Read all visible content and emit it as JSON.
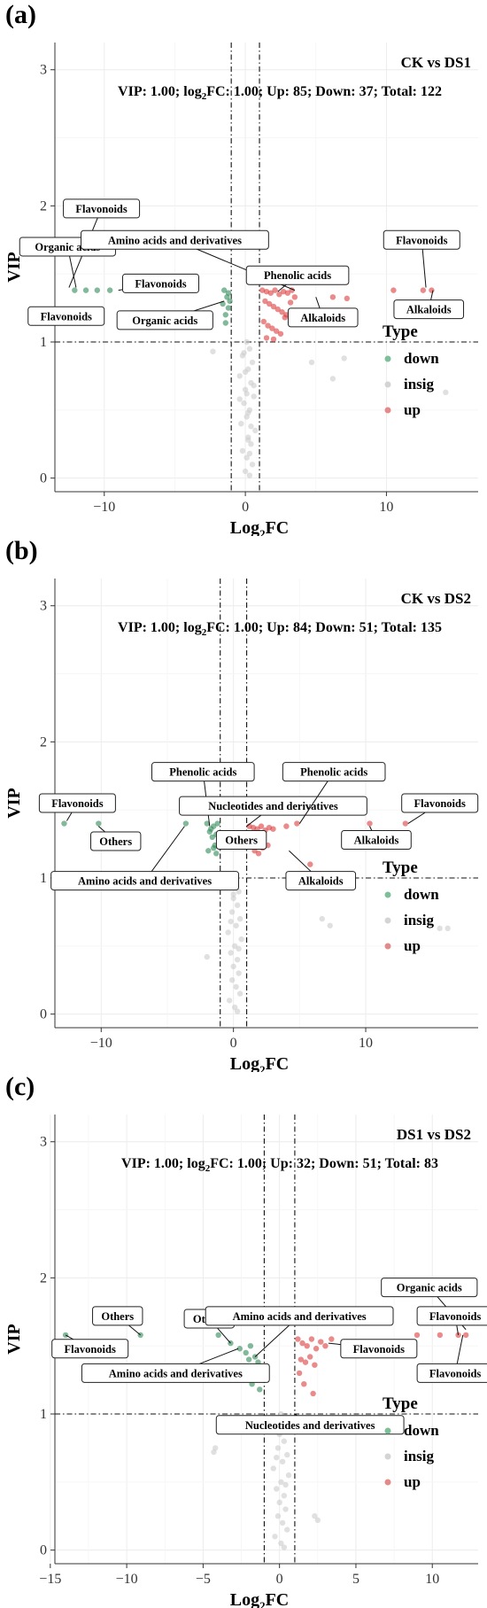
{
  "panels": [
    {
      "label": "(a)",
      "comparison": "CK vs DS1",
      "stats": {
        "vip": "1.00",
        "log2fc": "1.00",
        "up": "85",
        "down": "37",
        "total": "122"
      },
      "ylabel": "VIP",
      "xlabel": "FC",
      "chart_data": {
        "type": "scatter",
        "xlim": [
          -13.5,
          16.5
        ],
        "ylim": [
          -0.1,
          3.2
        ],
        "xticks": [
          -10,
          0,
          10
        ],
        "yticks": [
          0,
          1,
          2,
          3
        ],
        "grid": true,
        "legend_placement": "right",
        "thresholds": {
          "vip": 1.0,
          "log2fc": [
            -1.0,
            1.0
          ]
        },
        "series": [
          {
            "name": "down",
            "color": "#2e8b57",
            "x": [
              -12.1,
              -11.3,
              -10.5,
              -9.6,
              -1.5,
              -1.3,
              -1.1,
              -1.2,
              -1.4,
              -1.6,
              -1.2,
              -1.4
            ],
            "y": [
              1.38,
              1.38,
              1.38,
              1.38,
              1.38,
              1.33,
              1.3,
              1.25,
              1.2,
              1.28,
              1.36,
              1.14
            ]
          },
          {
            "name": "insig",
            "color": "#cccccc",
            "x": [
              0.1,
              0.3,
              -0.2,
              0.5,
              0.2,
              -0.4,
              0.4,
              0.0,
              0.6,
              -0.1,
              0.3,
              0.1,
              -0.3,
              0.7,
              0.2,
              0.4,
              -0.2,
              0.1,
              0.5,
              0.0,
              0.3,
              -0.1,
              0.6,
              0.2,
              -0.4,
              0.2,
              0.4,
              0.0,
              0.3,
              0.1,
              -2.3,
              4.7,
              6.2,
              7.0,
              14.2
            ],
            "y": [
              1.0,
              0.95,
              0.9,
              0.85,
              0.8,
              0.75,
              0.7,
              0.65,
              0.6,
              0.55,
              0.5,
              0.45,
              0.4,
              0.35,
              0.3,
              0.25,
              0.2,
              0.15,
              0.1,
              0.05,
              0.02,
              0.92,
              0.68,
              0.48,
              0.58,
              0.28,
              0.38,
              0.78,
              0.18,
              0.62,
              0.93,
              0.85,
              0.73,
              0.88,
              0.63
            ]
          },
          {
            "name": "up",
            "color": "#dc3c3c",
            "x": [
              1.2,
              1.5,
              1.8,
              2.1,
              2.4,
              2.7,
              3.0,
              3.3,
              1.4,
              1.7,
              2.0,
              2.3,
              2.6,
              2.9,
              1.3,
              1.6,
              1.9,
              2.2,
              2.5,
              1.5,
              2.0,
              2.8,
              3.2,
              3.5,
              6.2,
              7.2,
              10.5,
              12.6,
              13.2
            ],
            "y": [
              1.38,
              1.37,
              1.36,
              1.38,
              1.35,
              1.37,
              1.36,
              1.38,
              1.3,
              1.28,
              1.26,
              1.24,
              1.22,
              1.2,
              1.15,
              1.12,
              1.1,
              1.08,
              1.06,
              1.03,
              1.02,
              1.18,
              1.29,
              1.33,
              1.33,
              1.32,
              1.38,
              1.38,
              1.38
            ]
          }
        ],
        "annotations": [
          {
            "text": "Flavonoids",
            "lx": -10.2,
            "ly": 1.98,
            "px": -12.5,
            "py": 1.4
          },
          {
            "text": "Organic acids",
            "lx": -12.6,
            "ly": 1.7,
            "px": -12.0,
            "py": 1.4
          },
          {
            "text": "Flavonoids",
            "lx": -6.0,
            "ly": 1.43,
            "px": -9.0,
            "py": 1.38
          },
          {
            "text": "Flavonoids",
            "lx": -12.7,
            "ly": 1.19
          },
          {
            "text": "Organic acids",
            "lx": -5.7,
            "ly": 1.16,
            "px": -1.5,
            "py": 1.3
          },
          {
            "text": "Amino acids and derivatives",
            "lx": -5.0,
            "ly": 1.75,
            "px": 3.5,
            "py": 1.38
          },
          {
            "text": "Phenolic acids",
            "lx": 3.7,
            "ly": 1.49,
            "px": 2.3,
            "py": 1.37
          },
          {
            "text": "Alkaloids",
            "lx": 5.5,
            "ly": 1.18,
            "px": 5.0,
            "py": 1.33
          },
          {
            "text": "Flavonoids",
            "lx": 12.5,
            "ly": 1.75,
            "px": 12.8,
            "py": 1.4
          },
          {
            "text": "Alkaloids",
            "lx": 13.0,
            "ly": 1.24,
            "px": 13.3,
            "py": 1.38
          }
        ]
      }
    },
    {
      "label": "(b)",
      "comparison": "CK vs DS2",
      "stats": {
        "vip": "1.00",
        "log2fc": "1.00",
        "up": "84",
        "down": "51",
        "total": "135"
      },
      "ylabel": "VIP",
      "xlabel": "FC",
      "chart_data": {
        "type": "scatter",
        "xlim": [
          -13.5,
          18.5
        ],
        "ylim": [
          -0.1,
          3.2
        ],
        "xticks": [
          -10,
          0,
          10
        ],
        "yticks": [
          0,
          1,
          2,
          3
        ],
        "grid": true,
        "legend_placement": "right",
        "thresholds": {
          "vip": 1.0,
          "log2fc": [
            -1.0,
            1.0
          ]
        },
        "series": [
          {
            "name": "down",
            "color": "#2e8b57",
            "x": [
              -12.8,
              -10.2,
              -3.6,
              -2.0,
              -1.9,
              -1.7,
              -1.5,
              -1.3,
              -1.1,
              -1.4,
              -1.6,
              -1.2,
              -1.8,
              -1.5,
              -1.3
            ],
            "y": [
              1.4,
              1.4,
              1.4,
              1.4,
              1.2,
              1.36,
              1.38,
              1.32,
              1.28,
              1.24,
              1.3,
              1.4,
              1.34,
              1.22,
              1.18
            ]
          },
          {
            "name": "insig",
            "color": "#cccccc",
            "x": [
              0.1,
              -0.3,
              0.4,
              0.0,
              0.3,
              -0.1,
              0.5,
              0.2,
              -0.4,
              0.6,
              0.1,
              -0.2,
              0.3,
              0.0,
              0.4,
              -0.1,
              0.2,
              0.5,
              -0.3,
              0.1,
              0.3,
              0.0,
              -0.2,
              0.4,
              -2.0,
              6.7,
              7.3,
              15.6,
              16.2
            ],
            "y": [
              1.0,
              0.95,
              0.9,
              0.85,
              0.8,
              0.75,
              0.7,
              0.65,
              0.6,
              0.55,
              0.5,
              0.45,
              0.4,
              0.35,
              0.3,
              0.25,
              0.2,
              0.15,
              0.1,
              0.05,
              0.02,
              0.88,
              0.68,
              0.48,
              0.42,
              0.7,
              0.65,
              0.63,
              0.63
            ]
          },
          {
            "name": "up",
            "color": "#dc3c3c",
            "x": [
              1.2,
              1.5,
              1.8,
              2.1,
              2.4,
              2.7,
              3.0,
              1.4,
              1.7,
              2.0,
              2.3,
              2.6,
              1.6,
              1.9,
              2.2,
              4.0,
              4.8,
              10.3,
              13.0,
              5.8
            ],
            "y": [
              1.38,
              1.37,
              1.36,
              1.38,
              1.35,
              1.37,
              1.36,
              1.3,
              1.28,
              1.26,
              1.32,
              1.24,
              1.2,
              1.18,
              1.22,
              1.38,
              1.4,
              1.4,
              1.4,
              1.1
            ]
          }
        ],
        "annotations": [
          {
            "text": "Flavonoids",
            "lx": -11.8,
            "ly": 1.55,
            "px": -12.6,
            "py": 1.42
          },
          {
            "text": "Others",
            "lx": -8.9,
            "ly": 1.27,
            "px": -10.2,
            "py": 1.38
          },
          {
            "text": "Amino acids and derivatives",
            "lx": -6.7,
            "ly": 0.98,
            "px": -3.7,
            "py": 1.38
          },
          {
            "text": "Phenolic acids",
            "lx": -2.3,
            "ly": 1.78,
            "px": -1.8,
            "py": 1.38
          },
          {
            "text": "Nucleotides and derivatives",
            "lx": 3.0,
            "ly": 1.53,
            "px": 1.0,
            "py": 1.38
          },
          {
            "text": "Others",
            "lx": 0.6,
            "ly": 1.28,
            "px": 0.5,
            "py": 1.33
          },
          {
            "text": "Phenolic acids",
            "lx": 7.6,
            "ly": 1.78,
            "px": 5.0,
            "py": 1.4
          },
          {
            "text": "Alkaloids",
            "lx": 10.8,
            "ly": 1.28,
            "px": 10.3,
            "py": 1.38
          },
          {
            "text": "Alkaloids",
            "lx": 6.6,
            "ly": 0.98,
            "px": 4.2,
            "py": 1.2
          },
          {
            "text": "Flavonoids",
            "lx": 15.6,
            "ly": 1.55,
            "px": 13.2,
            "py": 1.4
          }
        ]
      }
    },
    {
      "label": "(c)",
      "comparison": "DS1 vs DS2",
      "stats": {
        "vip": "1.00",
        "log2fc": "1.00",
        "up": "32",
        "down": "51",
        "total": "83"
      },
      "ylabel": "VIP",
      "xlabel": "FC",
      "chart_data": {
        "type": "scatter",
        "xlim": [
          -14.7,
          13.0
        ],
        "ylim": [
          -0.1,
          3.2
        ],
        "xticks": [
          -15,
          -10,
          -5,
          0,
          5,
          10
        ],
        "yticks": [
          0,
          1,
          2,
          3
        ],
        "grid": true,
        "legend_placement": "right",
        "thresholds": {
          "vip": 1.0,
          "log2fc": [
            -1.0,
            1.0
          ]
        },
        "series": [
          {
            "name": "down",
            "color": "#2e8b57",
            "x": [
              -14.0,
              -9.1,
              -4.0,
              -3.2,
              -2.6,
              -2.2,
              -1.9,
              -1.6,
              -1.4,
              -1.2,
              -1.1,
              -1.5,
              -1.8,
              -2.0,
              -1.3
            ],
            "y": [
              1.58,
              1.58,
              1.58,
              1.52,
              1.48,
              1.45,
              1.5,
              1.42,
              1.38,
              1.35,
              1.3,
              1.25,
              1.22,
              1.4,
              1.18
            ]
          },
          {
            "name": "insig",
            "color": "#cccccc",
            "x": [
              0.1,
              -0.3,
              0.4,
              0.0,
              0.3,
              -0.1,
              0.5,
              0.2,
              -0.4,
              0.6,
              0.1,
              -0.2,
              0.3,
              0.0,
              0.4,
              -0.1,
              0.2,
              0.5,
              -0.3,
              0.1,
              0.3,
              0.0,
              -0.2,
              0.4,
              -4.2,
              -4.3,
              2.3,
              2.5
            ],
            "y": [
              1.0,
              0.95,
              0.9,
              0.85,
              0.8,
              0.75,
              0.7,
              0.65,
              0.6,
              0.55,
              0.5,
              0.45,
              0.4,
              0.35,
              0.3,
              0.25,
              0.2,
              0.15,
              0.1,
              0.05,
              0.02,
              0.92,
              0.68,
              0.48,
              0.75,
              0.72,
              0.25,
              0.22
            ]
          },
          {
            "name": "up",
            "color": "#dc3c3c",
            "x": [
              1.2,
              1.5,
              1.8,
              2.1,
              2.4,
              2.7,
              3.0,
              3.4,
              1.4,
              1.7,
              2.0,
              2.3,
              9.0,
              10.5,
              11.7,
              12.2,
              1.6,
              2.2,
              1.3
            ],
            "y": [
              1.55,
              1.52,
              1.5,
              1.55,
              1.48,
              1.53,
              1.5,
              1.55,
              1.4,
              1.38,
              1.42,
              1.36,
              1.58,
              1.58,
              1.58,
              1.58,
              1.22,
              1.15,
              1.3
            ]
          }
        ],
        "annotations": [
          {
            "text": "Others",
            "lx": -10.6,
            "ly": 1.72,
            "px": -9.1,
            "py": 1.58
          },
          {
            "text": "Flavonoids",
            "lx": -12.4,
            "ly": 1.48,
            "px": -14.0,
            "py": 1.58
          },
          {
            "text": "Others",
            "lx": -4.6,
            "ly": 1.7,
            "px": -3.2,
            "py": 1.52
          },
          {
            "text": "Amino acids and derivatives",
            "lx": 1.3,
            "ly": 1.72,
            "px": -1.6,
            "py": 1.42
          },
          {
            "text": "Amino acids and derivatives",
            "lx": -6.8,
            "ly": 1.3,
            "px": -2.7,
            "py": 1.48
          },
          {
            "text": "Flavonoids",
            "lx": 6.5,
            "ly": 1.48,
            "px": 3.2,
            "py": 1.52
          },
          {
            "text": "Nucleotides and derivatives",
            "lx": 2.0,
            "ly": 0.92,
            "px": 1.0,
            "py": 1.0
          },
          {
            "text": "Organic acids",
            "lx": 9.8,
            "ly": 1.93,
            "px": 12.2,
            "py": 1.62
          },
          {
            "text": "Flavonoids",
            "lx": 11.5,
            "ly": 1.72,
            "px": 11.7,
            "py": 1.58
          },
          {
            "text": "Flavonoids",
            "lx": 11.5,
            "ly": 1.3,
            "px": 12.0,
            "py": 1.58
          }
        ]
      }
    }
  ],
  "legend": {
    "title": "Type",
    "items": [
      {
        "label": "down",
        "color": "#7cbf98"
      },
      {
        "label": "insig",
        "color": "#d4d4d4"
      },
      {
        "label": "up",
        "color": "#e48a8a"
      }
    ]
  }
}
